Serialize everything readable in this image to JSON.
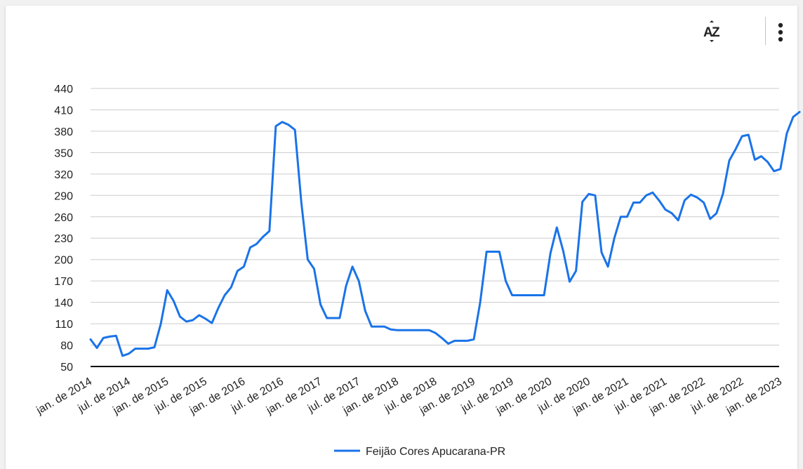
{
  "toolbar": {
    "sort_icon": "sort-az-icon",
    "more_icon": "more-vert-icon"
  },
  "colors": {
    "series": "#1a73e8",
    "grid": "#cccccc",
    "axis": "#000000"
  },
  "chart_data": {
    "type": "line",
    "title": "",
    "xlabel": "",
    "ylabel": "",
    "ylim": [
      50,
      440
    ],
    "y_ticks": [
      50,
      80,
      110,
      140,
      170,
      200,
      230,
      260,
      290,
      320,
      350,
      380,
      410,
      440
    ],
    "y_tick_labels": [
      "50",
      "80",
      "110",
      "140",
      "170",
      "200",
      "230",
      "260",
      "290",
      "320",
      "350",
      "380",
      "410",
      "440"
    ],
    "grid": true,
    "legend_position": "bottom",
    "x_tick_labels": [
      "jan. de 2014",
      "jul. de 2014",
      "jan. de 2015",
      "jul. de 2015",
      "jan. de 2016",
      "jul. de 2016",
      "jan. de 2017",
      "jul. de 2017",
      "jan. de 2018",
      "jul. de 2018",
      "jan. de 2019",
      "jul. de 2019",
      "jan. de 2020",
      "jul. de 2020",
      "jan. de 2021",
      "jul. de 2021",
      "jan. de 2022",
      "jul. de 2022",
      "jan. de 2023"
    ],
    "x_start": "2014-01",
    "series": [
      {
        "name": "Feijão Cores Apucarana-PR",
        "values": [
          88,
          76,
          90,
          92,
          93,
          65,
          68,
          75,
          75,
          75,
          77,
          110,
          157,
          142,
          120,
          113,
          115,
          122,
          117,
          111,
          132,
          150,
          161,
          184,
          190,
          217,
          222,
          232,
          240,
          387,
          393,
          389,
          382,
          280,
          200,
          187,
          137,
          118,
          118,
          118,
          163,
          190,
          170,
          128,
          106,
          106,
          106,
          102,
          101,
          101,
          101,
          101,
          101,
          101,
          97,
          90,
          82,
          86,
          86,
          86,
          88,
          140,
          211,
          211,
          211,
          170,
          150,
          150,
          150,
          150,
          150,
          150,
          209,
          245,
          212,
          169,
          184,
          281,
          292,
          290,
          210,
          190,
          230,
          260,
          260,
          280,
          280,
          290,
          294,
          283,
          270,
          265,
          255,
          283,
          291,
          287,
          280,
          257,
          265,
          292,
          339,
          355,
          373,
          375,
          340,
          345,
          337,
          324,
          327,
          377,
          400,
          407
        ]
      }
    ]
  }
}
